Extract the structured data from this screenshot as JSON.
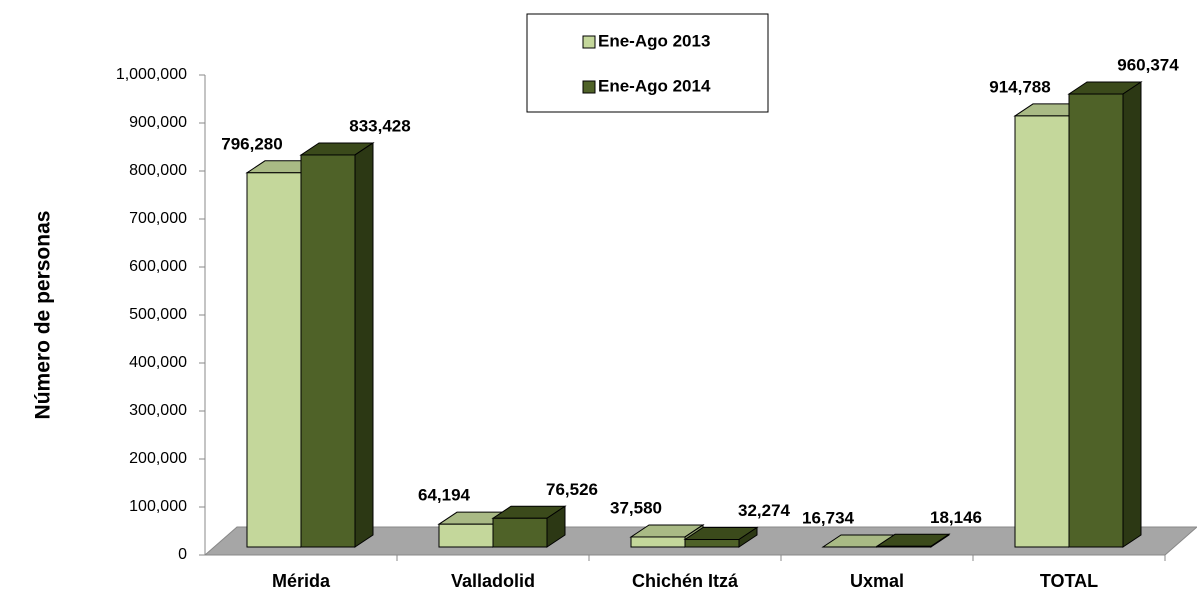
{
  "chart_data": {
    "type": "bar3d",
    "ylabel": "Número de personas",
    "categories": [
      "Mérida",
      "Valladolid",
      "Chichén Itzá",
      "Uxmal",
      "TOTAL"
    ],
    "series": [
      {
        "name": "Ene-Ago 2013",
        "color": "#c4d79b",
        "values": [
          796280,
          64194,
          37580,
          16734,
          914788
        ],
        "value_labels": [
          "796,280",
          "64,194",
          "37,580",
          "16,734",
          "914,788"
        ]
      },
      {
        "name": "Ene-Ago 2014",
        "color": "#4f6228",
        "values": [
          833428,
          76526,
          32274,
          18146,
          960374
        ],
        "value_labels": [
          "833,428",
          "76,526",
          "32,274",
          "18,146",
          "960,374"
        ]
      }
    ],
    "ylim": [
      0,
      1000000
    ],
    "yticks": [
      0,
      {
        "value": 100000,
        "label": "100,000"
      },
      {
        "value": 200000,
        "label": "200,000"
      },
      {
        "value": 300000,
        "label": "300,000"
      },
      {
        "value": 400000,
        "label": "400,000"
      },
      {
        "value": 500000,
        "label": "500,000"
      },
      {
        "value": 600000,
        "label": "600,000"
      },
      {
        "value": 700000,
        "label": "700,000"
      },
      {
        "value": 800000,
        "label": "800,000"
      },
      {
        "value": 900000,
        "label": "900,000"
      },
      {
        "value": 1000000,
        "label": "1,000,000"
      }
    ],
    "legend": "top-center"
  }
}
